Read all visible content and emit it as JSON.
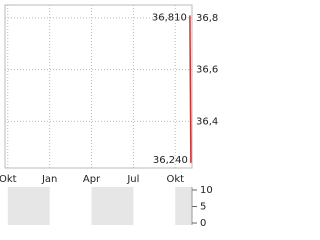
{
  "chart_data": [
    {
      "type": "line",
      "x": [
        13.05,
        13.12
      ],
      "values": [
        36.81,
        36.24
      ],
      "value_labels": [
        "36,810",
        "36,240"
      ],
      "color": "#cc3333",
      "xlim": [
        -0.2,
        13.2
      ],
      "xticks": [
        {
          "value": 0,
          "label": "Okt"
        },
        {
          "value": 3,
          "label": "Jan"
        },
        {
          "value": 6,
          "label": "Apr"
        },
        {
          "value": 9,
          "label": "Jul"
        },
        {
          "value": 12,
          "label": "Okt"
        }
      ],
      "ylim": [
        36.22,
        36.85
      ],
      "yticks": [
        {
          "value": 36.4,
          "label": "36,4"
        },
        {
          "value": 36.6,
          "label": "36,6"
        },
        {
          "value": 36.8,
          "label": "36,8"
        }
      ],
      "grid": true
    },
    {
      "type": "bar",
      "ylim": [
        -0.6,
        10.9
      ],
      "yticks": [
        0,
        5,
        10
      ],
      "shade": "#e6e6e6"
    }
  ]
}
